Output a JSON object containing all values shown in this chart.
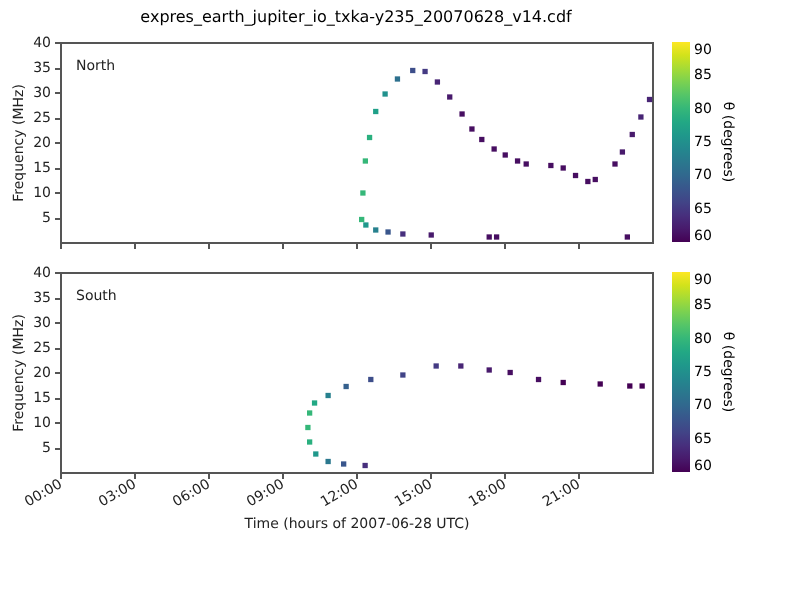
{
  "chart_data": [
    {
      "type": "scatter",
      "title": "expres_earth_jupiter_io_txka-y235_20070628_v14.cdf",
      "ylabel": "Frequency (MHz)",
      "clabel": "θ (degrees)",
      "annotations": [
        "North"
      ],
      "marker": "square",
      "tick_labels": "y",
      "x": [
        12.23,
        12.28,
        12.38,
        12.55,
        12.8,
        13.18,
        13.68,
        14.3,
        14.8,
        15.3,
        15.8,
        16.3,
        16.7,
        17.1,
        17.6,
        18.05,
        18.55,
        18.9,
        19.9,
        20.4,
        20.9,
        21.4,
        21.7,
        22.5,
        22.8,
        23.2,
        23.55,
        23.9,
        12.4,
        12.8,
        13.3,
        13.9,
        15.05,
        17.4,
        17.7,
        23.0
      ],
      "values": [
        4.5,
        9.8,
        16.2,
        20.9,
        26.1,
        29.6,
        32.6,
        34.3,
        34.1,
        32.0,
        29.0,
        25.6,
        22.6,
        20.5,
        18.6,
        17.4,
        16.2,
        15.6,
        15.3,
        14.8,
        13.3,
        12.1,
        12.5,
        15.6,
        18.0,
        21.5,
        25.0,
        28.5,
        3.4,
        2.4,
        2.0,
        1.6,
        1.4,
        1.0,
        1.0,
        1.0
      ],
      "cvalues": [
        80,
        80,
        80,
        79,
        77,
        75,
        71,
        67,
        65,
        63,
        62,
        61,
        61,
        61,
        61,
        61,
        61,
        61,
        61,
        61,
        61,
        61,
        61,
        61,
        62,
        62,
        63,
        63,
        76,
        73,
        68,
        64,
        62,
        61,
        61,
        61
      ],
      "xlim": [
        0,
        24
      ],
      "xticks": [
        0,
        3,
        6,
        9,
        12,
        15,
        18,
        21
      ],
      "ylim": [
        0,
        40
      ],
      "yticks": [
        5,
        10,
        15,
        20,
        25,
        30,
        35,
        40
      ],
      "clim": [
        60,
        90
      ],
      "cticks": [
        60,
        65,
        70,
        75,
        80,
        85,
        90
      ]
    },
    {
      "type": "scatter",
      "xlabel": "Time (hours of 2007-06-28 UTC)",
      "ylabel": "Frequency (MHz)",
      "clabel": "θ (degrees)",
      "annotations": [
        "South"
      ],
      "marker": "square",
      "x": [
        12.37,
        11.5,
        10.87,
        10.37,
        10.12,
        10.05,
        10.12,
        10.32,
        10.87,
        11.6,
        12.6,
        13.9,
        15.25,
        16.25,
        17.4,
        18.25,
        19.4,
        20.4,
        21.9,
        23.1,
        23.6
      ],
      "values": [
        1.3,
        1.6,
        2.1,
        3.6,
        6.0,
        8.9,
        11.8,
        13.8,
        15.3,
        17.1,
        18.5,
        19.4,
        21.2,
        21.2,
        20.4,
        19.9,
        18.5,
        17.9,
        17.6,
        17.2,
        17.2
      ],
      "cvalues": [
        64,
        68,
        72,
        76,
        79,
        80,
        80,
        78,
        73,
        69,
        67,
        66,
        65,
        63,
        62,
        61,
        61,
        60,
        60,
        60,
        60
      ],
      "xlim": [
        0,
        24
      ],
      "xticks": [
        {
          "value": 0,
          "label": "00:00"
        },
        {
          "value": 3,
          "label": "03:00"
        },
        {
          "value": 6,
          "label": "06:00"
        },
        {
          "value": 9,
          "label": "09:00"
        },
        {
          "value": 12,
          "label": "12:00"
        },
        {
          "value": 15,
          "label": "15:00"
        },
        {
          "value": 18,
          "label": "18:00"
        },
        {
          "value": 21,
          "label": "21:00"
        }
      ],
      "ylim": [
        0,
        40
      ],
      "yticks": [
        5,
        10,
        15,
        20,
        25,
        30,
        35,
        40
      ],
      "clim": [
        60,
        90
      ],
      "cticks": [
        60,
        65,
        70,
        75,
        80,
        85,
        90
      ]
    }
  ]
}
